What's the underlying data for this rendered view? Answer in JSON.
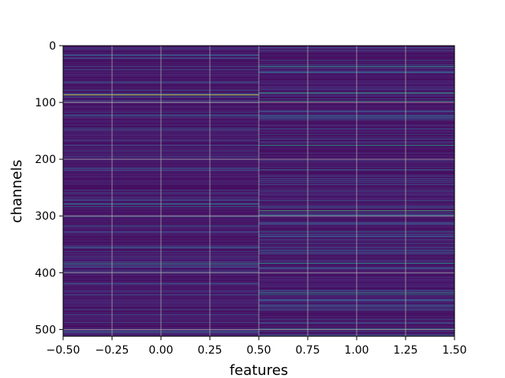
{
  "chart_data": {
    "type": "heatmap",
    "xlabel": "features",
    "ylabel": "channels",
    "xlim": [
      -0.5,
      1.5
    ],
    "ylim": [
      512,
      0
    ],
    "x_ticks": [
      -0.5,
      -0.25,
      0.0,
      0.25,
      0.5,
      0.75,
      1.0,
      1.25,
      1.5
    ],
    "x_tick_labels": [
      "−0.50",
      "−0.25",
      "0.00",
      "0.25",
      "0.50",
      "0.75",
      "1.00",
      "1.25",
      "1.50"
    ],
    "y_ticks": [
      0,
      100,
      200,
      300,
      400,
      500
    ],
    "y_tick_labels": [
      "0",
      "100",
      "200",
      "300",
      "400",
      "500"
    ],
    "grid": true,
    "colormap": "viridis",
    "columns": [
      0,
      1
    ],
    "rows": 512,
    "value_range": [
      0,
      1
    ],
    "baseline_value": 0.1,
    "highlighted_cells": [
      {
        "feature": 0,
        "channel": 86,
        "value": 0.95
      },
      {
        "feature": 0,
        "channel": 278,
        "value": 0.4
      },
      {
        "feature": 0,
        "channel": 283,
        "value": 0.35
      },
      {
        "feature": 0,
        "channel": 384,
        "value": 0.6
      },
      {
        "feature": 0,
        "channel": 503,
        "value": 0.4
      },
      {
        "feature": 1,
        "channel": 36,
        "value": 0.6
      },
      {
        "feature": 1,
        "channel": 83,
        "value": 0.65
      },
      {
        "feature": 1,
        "channel": 97,
        "value": 0.45
      },
      {
        "feature": 1,
        "channel": 175,
        "value": 0.6
      },
      {
        "feature": 1,
        "channel": 218,
        "value": 0.4
      },
      {
        "feature": 1,
        "channel": 290,
        "value": 0.7
      },
      {
        "feature": 1,
        "channel": 298,
        "value": 0.45
      },
      {
        "feature": 1,
        "channel": 327,
        "value": 0.4
      },
      {
        "feature": 1,
        "channel": 383,
        "value": 0.55
      },
      {
        "feature": 1,
        "channel": 435,
        "value": 0.55
      },
      {
        "feature": 1,
        "channel": 438,
        "value": 0.5
      },
      {
        "feature": 1,
        "channel": 498,
        "value": 0.45
      }
    ]
  }
}
